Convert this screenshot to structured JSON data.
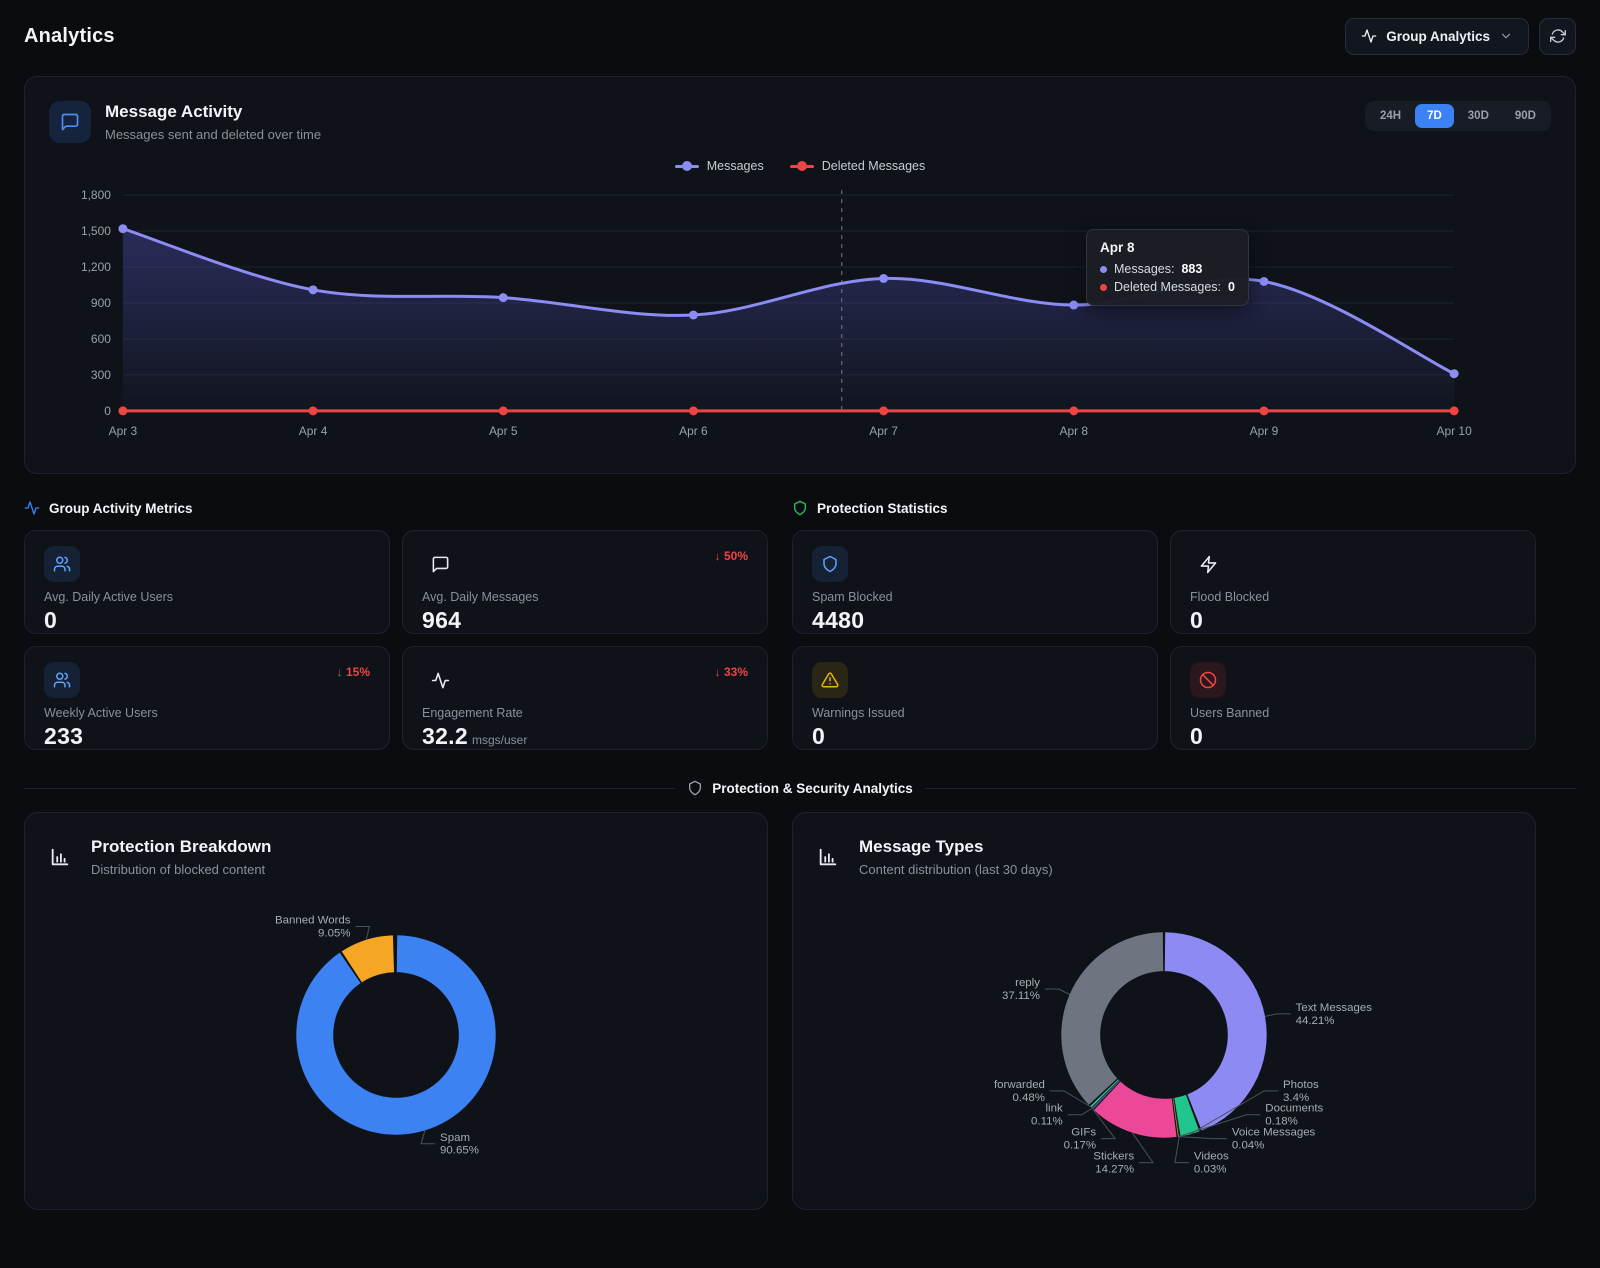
{
  "page": {
    "title": "Analytics"
  },
  "header": {
    "group_selector_label": "Group Analytics"
  },
  "message_activity": {
    "title": "Message Activity",
    "subtitle": "Messages sent and deleted over time",
    "ranges": [
      "24H",
      "7D",
      "30D",
      "90D"
    ],
    "active_range": "7D",
    "tooltip": {
      "title": "Apr 8",
      "rows": [
        {
          "label": "Messages:",
          "value": "883",
          "color": "#8b8cf4"
        },
        {
          "label": "Deleted Messages:",
          "value": "0",
          "color": "#ef4444"
        }
      ]
    }
  },
  "chart_data": [
    {
      "id": "message-activity",
      "type": "line",
      "title": "Message Activity",
      "x": [
        "Apr 3",
        "Apr 4",
        "Apr 5",
        "Apr 6",
        "Apr 7",
        "Apr 8",
        "Apr 9",
        "Apr 10"
      ],
      "series": [
        {
          "name": "Messages",
          "color": "#8b8cf4",
          "area": true,
          "values": [
            1520,
            1010,
            945,
            800,
            1105,
            883,
            1080,
            310
          ]
        },
        {
          "name": "Deleted Messages",
          "color": "#ef4444",
          "area": false,
          "values": [
            0,
            0,
            0,
            0,
            0,
            0,
            0,
            0
          ]
        }
      ],
      "ylim": [
        0,
        1800
      ],
      "yticks": [
        0,
        300,
        600,
        900,
        1200,
        1500,
        1800
      ],
      "grid": true,
      "legend_position": "top",
      "cursor_x_fraction": 0.54
    },
    {
      "id": "protection-breakdown",
      "type": "pie",
      "title": "Protection Breakdown",
      "slices": [
        {
          "label": "Spam",
          "pct": 90.65,
          "color": "#3d82f2"
        },
        {
          "label": "Banned Words",
          "pct": 9.05,
          "color": "#f5a623"
        }
      ]
    },
    {
      "id": "message-types",
      "type": "pie",
      "title": "Message Types",
      "slices": [
        {
          "label": "Text Messages",
          "pct": 44.21,
          "color": "#8d8af3"
        },
        {
          "label": "Photos",
          "pct": 3.4,
          "color": "#22c68c"
        },
        {
          "label": "Videos",
          "pct": 0.03,
          "color": "#5dd3b3"
        },
        {
          "label": "Voice Messages",
          "pct": 0.04,
          "color": "#f472b6"
        },
        {
          "label": "Documents",
          "pct": 0.18,
          "color": "#fbbf24"
        },
        {
          "label": "Stickers",
          "pct": 14.27,
          "color": "#ec4899"
        },
        {
          "label": "GIFs",
          "pct": 0.17,
          "color": "#a78bfa"
        },
        {
          "label": "link",
          "pct": 0.11,
          "color": "#60a5fa"
        },
        {
          "label": "forwarded",
          "pct": 0.48,
          "color": "#34d399"
        },
        {
          "label": "reply",
          "pct": 37.11,
          "color": "#6e7480"
        }
      ]
    }
  ],
  "group_activity_metrics": {
    "title": "Group Activity Metrics",
    "cards": [
      {
        "label": "Avg. Daily Active Users",
        "value": "0"
      },
      {
        "label": "Avg. Daily Messages",
        "value": "964",
        "badge": "↓ 50%"
      },
      {
        "label": "Weekly Active Users",
        "value": "233",
        "badge": "↓ 15%"
      },
      {
        "label": "Engagement Rate",
        "value": "32.2",
        "unit": "msgs/user",
        "badge": "↓ 33%"
      }
    ]
  },
  "protection_statistics": {
    "title": "Protection Statistics",
    "cards": [
      {
        "label": "Spam Blocked",
        "value": "4480"
      },
      {
        "label": "Flood Blocked",
        "value": "0"
      },
      {
        "label": "Warnings Issued",
        "value": "0"
      },
      {
        "label": "Users Banned",
        "value": "0"
      }
    ]
  },
  "security": {
    "divider_label": "Protection & Security Analytics",
    "cards": [
      {
        "title": "Protection Breakdown",
        "subtitle": "Distribution of blocked content"
      },
      {
        "title": "Message Types",
        "subtitle": "Content distribution (last 30 days)"
      }
    ]
  }
}
